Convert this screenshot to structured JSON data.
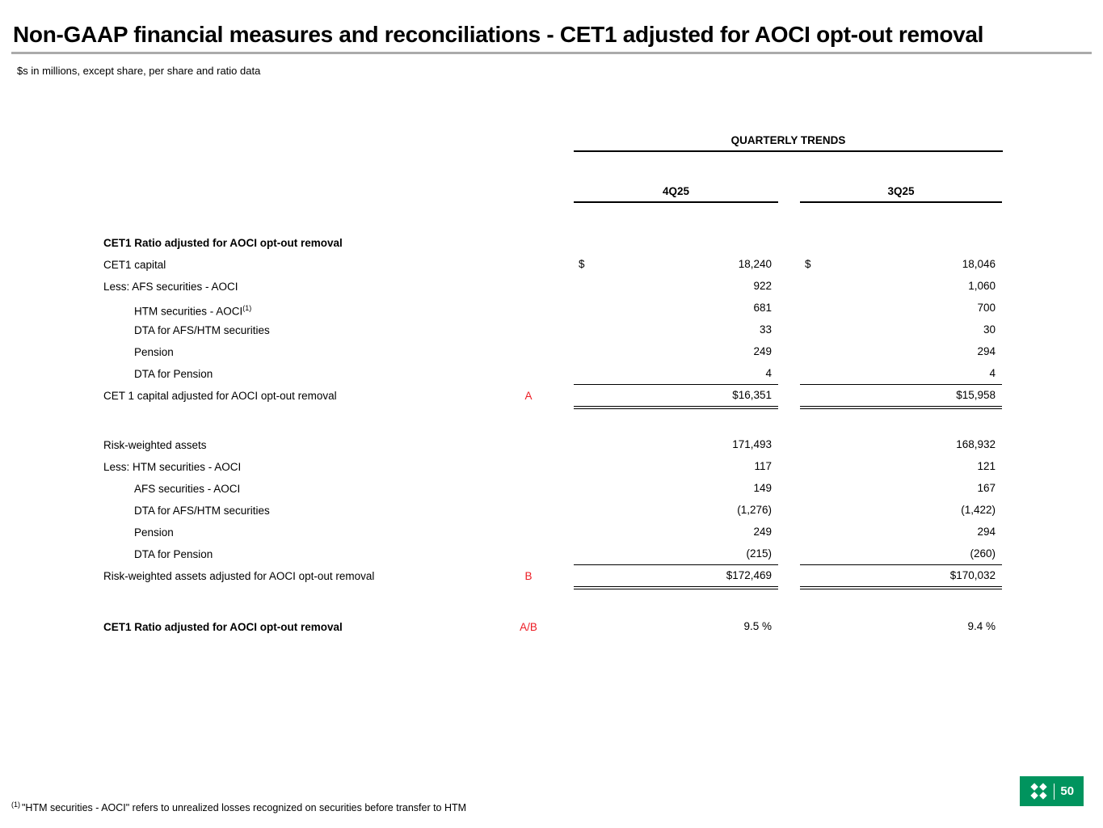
{
  "slide": {
    "title": "Non-GAAP financial measures and reconciliations - CET1 adjusted for AOCI opt-out removal",
    "subtitle": "$s in millions, except share, per share and ratio data",
    "footnote_marker": "(1)",
    "footnote_text": "\"HTM securities - AOCI\" refers to unrealized losses recognized on securities before transfer to HTM",
    "page_number": "50"
  },
  "colors": {
    "ref_red": "#ED1C24",
    "brand_green": "#00945E",
    "title_rule_gray": "#ABABAB"
  },
  "icons": {
    "citizens-logo-icon": "white pinwheel flag glyph on green square"
  },
  "table": {
    "group_header": "QUARTERLY TRENDS",
    "columns": [
      "4Q25",
      "3Q25"
    ],
    "rows": [
      {
        "label": "CET1 Ratio adjusted for AOCI opt-out removal",
        "bold": true
      },
      {
        "label": "CET1 capital",
        "d1": "$",
        "v1": "18,240",
        "d2": "$",
        "v2": "18,046"
      },
      {
        "label": "Less: AFS securities - AOCI",
        "v1": "922",
        "v2": "1,060"
      },
      {
        "label": "HTM securities - AOCI",
        "sup": "(1)",
        "indent": 1,
        "v1": "681",
        "v2": "700"
      },
      {
        "label": "DTA for AFS/HTM securities",
        "indent": 1,
        "v1": "33",
        "v2": "30"
      },
      {
        "label": "Pension",
        "indent": 1,
        "v1": "249",
        "v2": "294"
      },
      {
        "label": "DTA for Pension",
        "indent": 1,
        "v1": "4",
        "v2": "4",
        "rule": "bottom"
      },
      {
        "label": "CET 1 capital adjusted for AOCI opt-out removal",
        "ref": "A",
        "v1": "$16,351",
        "v2": "$15,958",
        "rule": "double"
      },
      {
        "spacer": true,
        "h": 34
      },
      {
        "label": "Risk-weighted assets",
        "v1": "171,493",
        "v2": "168,932"
      },
      {
        "label": "Less: HTM securities - AOCI",
        "v1": "117",
        "v2": "121"
      },
      {
        "label": "AFS securities - AOCI",
        "indent": 1,
        "v1": "149",
        "v2": "167"
      },
      {
        "label": "DTA for AFS/HTM securities",
        "indent": 1,
        "v1": "(1,276)",
        "v2": "(1,422)"
      },
      {
        "label": "Pension",
        "indent": 1,
        "v1": "249",
        "v2": "294"
      },
      {
        "label": "DTA for Pension",
        "indent": 1,
        "v1": "(215)",
        "v2": "(260)",
        "rule": "bottom"
      },
      {
        "label": "Risk-weighted assets adjusted for AOCI opt-out removal",
        "ref": "B",
        "v1": "$172,469",
        "v2": "$170,032",
        "rule": "double"
      },
      {
        "spacer": true,
        "h": 36
      },
      {
        "label": "CET1 Ratio adjusted for AOCI opt-out removal",
        "bold": true,
        "ref": "A/B",
        "v1": "9.5 %",
        "v2": "9.4 %"
      }
    ]
  }
}
